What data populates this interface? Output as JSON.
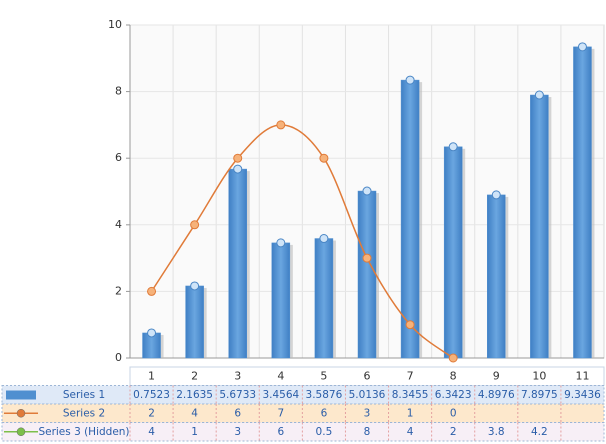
{
  "chart_data": {
    "type": "bar",
    "categories": [
      "1",
      "2",
      "3",
      "4",
      "5",
      "6",
      "7",
      "8",
      "9",
      "10",
      "11"
    ],
    "series": [
      {
        "name": "Series 1",
        "type": "bar",
        "color": "#4f8fd0",
        "values": [
          0.7523,
          2.1635,
          5.6733,
          3.4564,
          3.5876,
          5.0136,
          8.3455,
          6.3423,
          4.8976,
          7.8975,
          9.3436
        ]
      },
      {
        "name": "Series 2",
        "type": "spline",
        "color": "#e07b39",
        "values": [
          2,
          4,
          6,
          7,
          6,
          3,
          1,
          0,
          null,
          null,
          null
        ]
      },
      {
        "name": "Series 3 (Hidden)",
        "type": "line",
        "color": "#7cbf4a",
        "hidden": true,
        "values": [
          4,
          1,
          3,
          6,
          0.5,
          8,
          4,
          2,
          3.8,
          4.2,
          null
        ]
      }
    ],
    "ylim": [
      0,
      10
    ],
    "yticks": [
      0,
      2,
      4,
      6,
      8,
      10
    ],
    "grid": true
  }
}
